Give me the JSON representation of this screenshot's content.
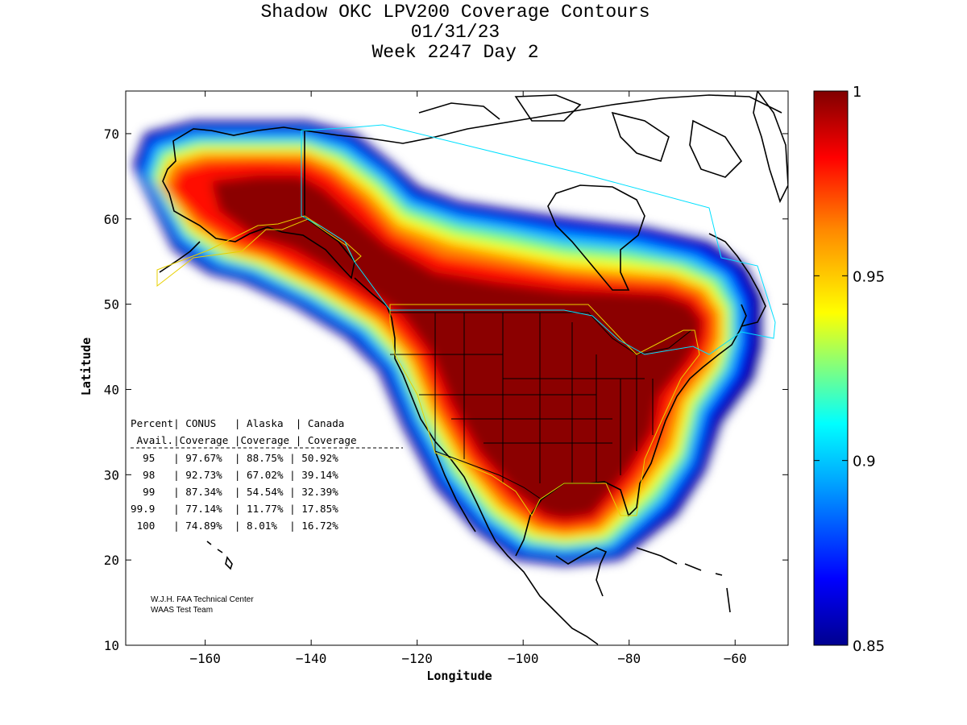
{
  "title": {
    "line1": "Shadow OKC LPV200 Coverage Contours",
    "line2": "01/31/23",
    "line3": "Week 2247 Day 2"
  },
  "map": {
    "xlabel": "Longitude",
    "ylabel": "Latitude",
    "lon_range": [
      -175,
      -50
    ],
    "lat_range": [
      10,
      75
    ],
    "xticks": [
      -160,
      -140,
      -120,
      -100,
      -80,
      -60
    ],
    "yticks": [
      10,
      20,
      30,
      40,
      50,
      60,
      70
    ]
  },
  "colorbar": {
    "min": 0.85,
    "max": 1,
    "ticks": [
      "1",
      "0.95",
      "0.9",
      "0.85"
    ],
    "tick_values": [
      1,
      0.95,
      0.9,
      0.85
    ],
    "colors": [
      "#00008f",
      "#0000ff",
      "#00aaff",
      "#00ffff",
      "#ffff00",
      "#ff8800",
      "#ff0000",
      "#800000"
    ]
  },
  "table": {
    "header1": "Percent| CONUS   | Alaska  | Canada",
    "header2": " Avail.|Coverage |Coverage | Coverage",
    "rows": [
      "  95   | 97.67%  | 88.75% | 50.92%",
      "  98   | 92.73%  | 67.02% | 39.14%",
      "  99   | 87.34%  | 54.54% | 32.39%",
      "99.9   | 77.14%  | 11.77% | 17.85%",
      " 100   | 74.89%  | 8.01%  | 16.72%"
    ]
  },
  "credit": {
    "line1": "W.J.H. FAA Technical Center",
    "line2": "WAAS Test Team"
  }
}
